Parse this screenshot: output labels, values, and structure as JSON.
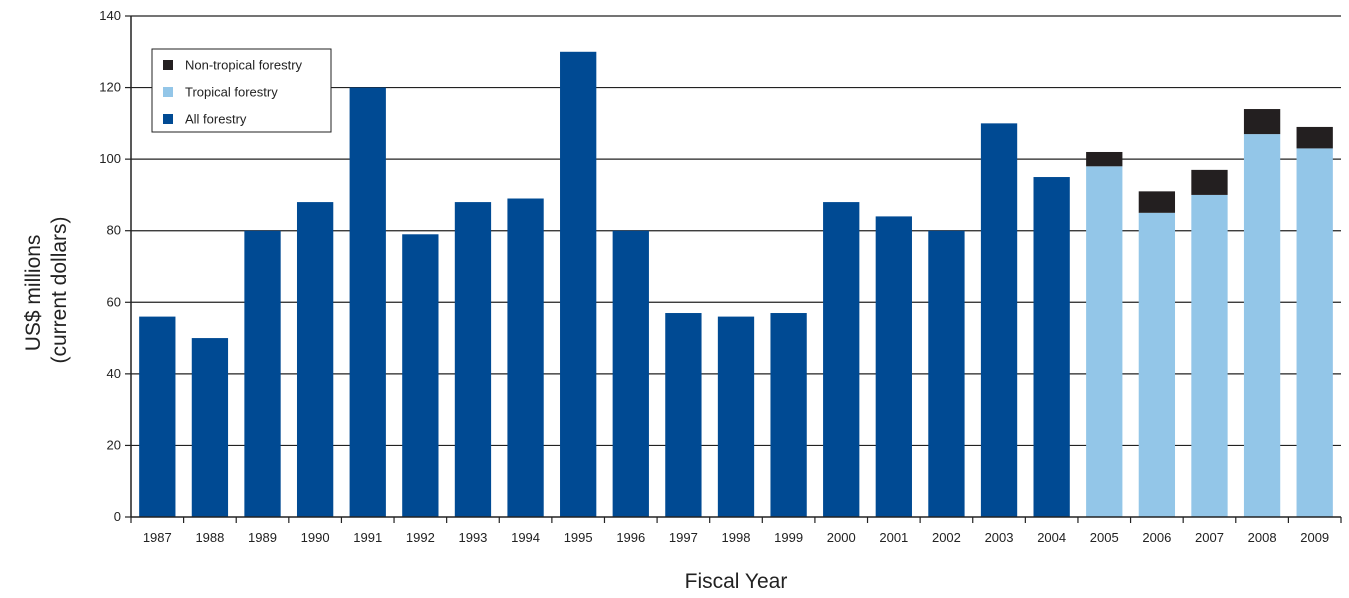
{
  "chart_data": {
    "type": "bar",
    "stacked": true,
    "categories": [
      "1987",
      "1988",
      "1989",
      "1990",
      "1991",
      "1992",
      "1993",
      "1994",
      "1995",
      "1996",
      "1997",
      "1998",
      "1999",
      "2000",
      "2001",
      "2002",
      "2003",
      "2004",
      "2005",
      "2006",
      "2007",
      "2008",
      "2009"
    ],
    "series": [
      {
        "name": "All forestry",
        "color": "#004a93",
        "values": [
          56,
          50,
          80,
          88,
          120,
          79,
          88,
          89,
          130,
          80,
          57,
          56,
          57,
          88,
          84,
          80,
          110,
          95,
          null,
          null,
          null,
          null,
          null
        ]
      },
      {
        "name": "Tropical forestry",
        "color": "#93c6e8",
        "values": [
          null,
          null,
          null,
          null,
          null,
          null,
          null,
          null,
          null,
          null,
          null,
          null,
          null,
          null,
          null,
          null,
          null,
          null,
          98,
          85,
          90,
          107,
          103
        ]
      },
      {
        "name": "Non-tropical forestry",
        "color": "#231f20",
        "values": [
          null,
          null,
          null,
          null,
          null,
          null,
          null,
          null,
          null,
          null,
          null,
          null,
          null,
          null,
          null,
          null,
          null,
          null,
          4,
          6,
          7,
          7,
          6
        ]
      }
    ],
    "legend_order": [
      "Non-tropical forestry",
      "Tropical forestry",
      "All forestry"
    ],
    "legend_position": "top-left",
    "ylabel": [
      "US$ millions",
      "(current dollars)"
    ],
    "xlabel": "Fiscal Year",
    "ylim": [
      0,
      140
    ],
    "yticks": [
      0,
      20,
      40,
      60,
      80,
      100,
      120,
      140
    ],
    "grid": true
  }
}
